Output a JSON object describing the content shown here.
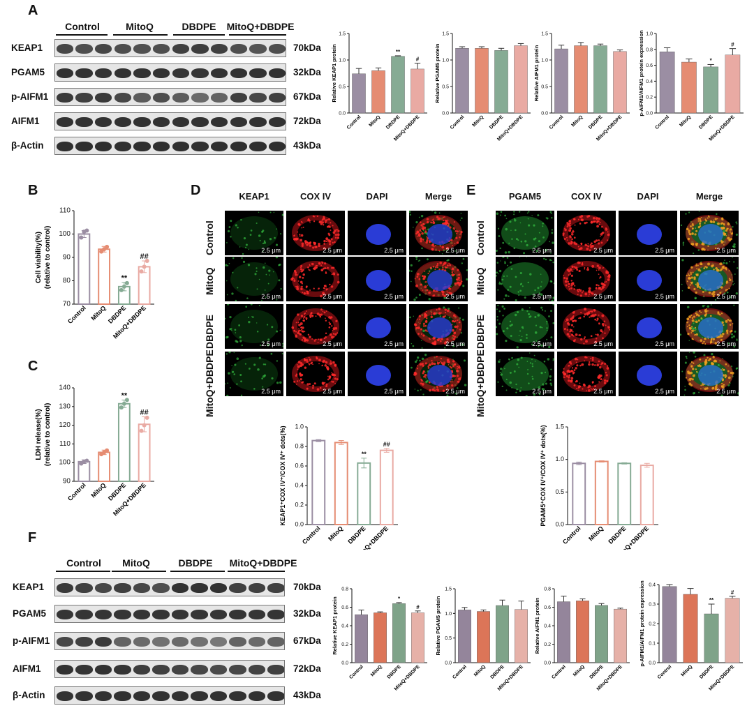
{
  "panels": {
    "A": "A",
    "B": "B",
    "C": "C",
    "D": "D",
    "E": "E",
    "F": "F"
  },
  "groups": [
    "Control",
    "MitoQ",
    "DBDPE",
    "MitoQ+DBDPE"
  ],
  "colors": {
    "Control": "#9b8ea3",
    "MitoQ": "#e58c72",
    "DBDPE": "#86ab94",
    "MitoQ+DBDPE": "#e9aaa3",
    "F_Control": "#94859b",
    "F_MitoQ": "#dc7558",
    "F_DBDPE": "#7fa389",
    "F_MitoQ+DBDPE": "#e6b1a8"
  },
  "blots": {
    "proteins": [
      "KEAP1",
      "PGAM5",
      "p-AIFM1",
      "AIFM1",
      "β-Actin"
    ],
    "kda": [
      "70kDa",
      "32kDa",
      "67kDa",
      "72kDa",
      "43kDa"
    ]
  },
  "microscopy": {
    "D_columns": [
      "KEAP1",
      "COX IV",
      "DAPI",
      "Merge"
    ],
    "E_columns": [
      "PGAM5",
      "COX IV",
      "DAPI",
      "Merge"
    ],
    "rows": [
      "Control",
      "MitoQ",
      "DBDPE",
      "MitoQ+DBDPE"
    ],
    "scale_bar": "2.5 μm"
  },
  "chart_data": [
    {
      "id": "A1",
      "type": "bar",
      "panel": "A",
      "categories": [
        "Control",
        "MitoQ",
        "DBDPE",
        "MitoQ+DBDPE"
      ],
      "values": [
        0.74,
        0.8,
        1.07,
        0.83
      ],
      "errors": [
        0.1,
        0.05,
        0.01,
        0.11
      ],
      "sig": [
        "",
        "",
        "**",
        "#"
      ],
      "ylabel": "Relative KEAP1 protein",
      "ylim": [
        0,
        1.5
      ],
      "yticks": [
        0.0,
        0.5,
        1.0,
        1.5
      ]
    },
    {
      "id": "A2",
      "type": "bar",
      "panel": "A",
      "categories": [
        "Control",
        "MitoQ",
        "DBDPE",
        "MitoQ+DBDPE"
      ],
      "values": [
        1.22,
        1.22,
        1.18,
        1.27
      ],
      "errors": [
        0.03,
        0.03,
        0.04,
        0.04
      ],
      "sig": [
        "",
        "",
        "",
        ""
      ],
      "ylabel": "Relative PGAM5 protein",
      "ylim": [
        0,
        1.5
      ],
      "yticks": [
        0.0,
        0.5,
        1.0,
        1.5
      ]
    },
    {
      "id": "A3",
      "type": "bar",
      "panel": "A",
      "categories": [
        "Control",
        "MitoQ",
        "DBDPE",
        "MitoQ+DBDPE"
      ],
      "values": [
        1.21,
        1.27,
        1.27,
        1.16
      ],
      "errors": [
        0.07,
        0.06,
        0.03,
        0.03
      ],
      "sig": [
        "",
        "",
        "",
        ""
      ],
      "ylabel": "Relative AIFM1 protein",
      "ylim": [
        0,
        1.5
      ],
      "yticks": [
        0.0,
        0.5,
        1.0,
        1.5
      ]
    },
    {
      "id": "A4",
      "type": "bar",
      "panel": "A",
      "categories": [
        "Control",
        "MitoQ",
        "DBDPE",
        "MitoQ+DBDPE"
      ],
      "values": [
        0.77,
        0.64,
        0.58,
        0.73
      ],
      "errors": [
        0.05,
        0.04,
        0.03,
        0.08
      ],
      "sig": [
        "",
        "",
        "*",
        "#"
      ],
      "ylabel": "p-AIFM1/AIFM1 protein expression",
      "ylim": [
        0,
        1.0
      ],
      "yticks": [
        0.0,
        0.2,
        0.4,
        0.6,
        0.8,
        1.0
      ]
    },
    {
      "id": "B",
      "type": "bar",
      "panel": "B",
      "categories": [
        "Control",
        "MitoQ",
        "DBDPE",
        "MitoQ+DBDPE"
      ],
      "values": [
        100,
        93.5,
        77.5,
        86
      ],
      "errors": [
        1.5,
        1.2,
        1.8,
        2.5
      ],
      "sig": [
        "",
        "",
        "**",
        "##"
      ],
      "points": [
        [
          98.5,
          101,
          101.5
        ],
        [
          92.5,
          93.5,
          94.5
        ],
        [
          76,
          77.5,
          79
        ],
        [
          84,
          86,
          88.5
        ]
      ],
      "ylabel": "Cell viability(%)",
      "ylabel2": "(relative to control)",
      "ylim": [
        70,
        110
      ],
      "yticks": [
        70,
        80,
        90,
        100,
        110
      ]
    },
    {
      "id": "C",
      "type": "bar",
      "panel": "C",
      "categories": [
        "Control",
        "MitoQ",
        "DBDPE",
        "MitoQ+DBDPE"
      ],
      "values": [
        100.5,
        105.5,
        131.5,
        120.5
      ],
      "errors": [
        1,
        1.2,
        2,
        4
      ],
      "sig": [
        "",
        "",
        "**",
        "##"
      ],
      "points": [
        [
          99.5,
          100.5,
          101
        ],
        [
          104.5,
          105.5,
          106.5
        ],
        [
          129.5,
          131.5,
          133.5
        ],
        [
          117,
          120,
          124
        ]
      ],
      "ylabel": "LDH release(%)",
      "ylabel2": "(relative to control)",
      "ylim": [
        90,
        140
      ],
      "yticks": [
        90,
        100,
        110,
        120,
        130,
        140
      ]
    },
    {
      "id": "D",
      "type": "bar",
      "panel": "D",
      "categories": [
        "Control",
        "MitoQ",
        "DBDPE",
        "MitoQ+DBDPE"
      ],
      "values": [
        0.86,
        0.84,
        0.63,
        0.76
      ],
      "errors": [
        0.01,
        0.02,
        0.05,
        0.02
      ],
      "sig": [
        "",
        "",
        "**",
        "##"
      ],
      "ylabel": "KEAP1⁺COX IV⁺/COX IV⁺ dots(%)",
      "ylim": [
        0,
        1.0
      ],
      "yticks": [
        0.0,
        0.2,
        0.4,
        0.6,
        0.8,
        1.0
      ]
    },
    {
      "id": "E",
      "type": "bar",
      "panel": "E",
      "categories": [
        "Control",
        "MitoQ",
        "DBDPE",
        "MitoQ+DBDPE"
      ],
      "values": [
        0.94,
        0.97,
        0.94,
        0.91
      ],
      "errors": [
        0.02,
        0.01,
        0.01,
        0.03
      ],
      "sig": [
        "",
        "",
        "",
        ""
      ],
      "ylabel": "PGAM5⁺COX IV⁺/COX IV⁺ dots(%)",
      "ylim": [
        0,
        1.5
      ],
      "yticks": [
        0.0,
        0.5,
        1.0,
        1.5
      ]
    },
    {
      "id": "F1",
      "type": "bar",
      "panel": "F",
      "categories": [
        "Control",
        "MitoQ",
        "DBDPE",
        "MitoQ+DBDPE"
      ],
      "values": [
        0.52,
        0.54,
        0.64,
        0.54
      ],
      "errors": [
        0.05,
        0.01,
        0.01,
        0.02
      ],
      "sig": [
        "",
        "",
        "*",
        "#"
      ],
      "ylabel": "Relative KEAP1 protein",
      "ylim": [
        0,
        0.8
      ],
      "yticks": [
        0.0,
        0.2,
        0.4,
        0.6,
        0.8
      ]
    },
    {
      "id": "F2",
      "type": "bar",
      "panel": "F",
      "categories": [
        "Control",
        "MitoQ",
        "DBDPE",
        "MitoQ+DBDPE"
      ],
      "values": [
        1.07,
        1.04,
        1.16,
        1.08
      ],
      "errors": [
        0.05,
        0.03,
        0.11,
        0.17
      ],
      "sig": [
        "",
        "",
        "",
        ""
      ],
      "ylabel": "Relative PGAM5 protein",
      "ylim": [
        0,
        1.5
      ],
      "yticks": [
        0.0,
        0.5,
        1.0,
        1.5
      ]
    },
    {
      "id": "F3",
      "type": "bar",
      "panel": "F",
      "categories": [
        "Control",
        "MitoQ",
        "DBDPE",
        "MitoQ+DBDPE"
      ],
      "values": [
        0.66,
        0.67,
        0.62,
        0.58
      ],
      "errors": [
        0.06,
        0.02,
        0.02,
        0.01
      ],
      "sig": [
        "",
        "",
        "",
        ""
      ],
      "ylabel": "Relative AIFM1 protein",
      "ylim": [
        0,
        0.8
      ],
      "yticks": [
        0.0,
        0.2,
        0.4,
        0.6,
        0.8
      ]
    },
    {
      "id": "F4",
      "type": "bar",
      "panel": "F",
      "categories": [
        "Control",
        "MitoQ",
        "DBDPE",
        "MitoQ+DBDPE"
      ],
      "values": [
        0.39,
        0.35,
        0.25,
        0.33
      ],
      "errors": [
        0.01,
        0.03,
        0.05,
        0.01
      ],
      "sig": [
        "",
        "",
        "**",
        "#"
      ],
      "ylabel": "p-AIFM1/AIFM1 protein expression",
      "ylim": [
        0,
        0.4
      ],
      "yticks": [
        0.0,
        0.1,
        0.2,
        0.3,
        0.4
      ]
    }
  ]
}
